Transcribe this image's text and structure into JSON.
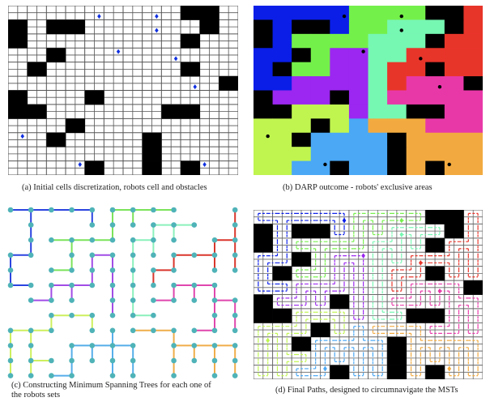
{
  "figure": {
    "grid": {
      "coarse_rows": 12,
      "coarse_cols": 12,
      "fine_rows": 24,
      "fine_cols": 24
    },
    "obstacle_color": "#000000",
    "obstacles": [
      [
        0,
        9
      ],
      [
        0,
        10
      ],
      [
        1,
        0
      ],
      [
        1,
        2
      ],
      [
        1,
        3
      ],
      [
        1,
        10
      ],
      [
        2,
        0
      ],
      [
        2,
        9
      ],
      [
        3,
        2
      ],
      [
        4,
        1
      ],
      [
        4,
        9
      ],
      [
        5,
        11
      ],
      [
        6,
        0
      ],
      [
        6,
        4
      ],
      [
        7,
        0
      ],
      [
        7,
        1
      ],
      [
        7,
        8
      ],
      [
        7,
        9
      ],
      [
        8,
        3
      ],
      [
        9,
        2
      ],
      [
        9,
        7
      ],
      [
        10,
        7
      ],
      [
        11,
        4
      ],
      [
        11,
        7
      ],
      [
        11,
        9
      ]
    ],
    "robots": [
      {
        "id": "blue",
        "color": "#0a1ee8",
        "tree_color": "#2b44e0",
        "cell": [
          0,
          4
        ],
        "fine": [
          1,
          9
        ]
      },
      {
        "id": "green",
        "color": "#74f04a",
        "tree_color": "#7be35a",
        "cell": [
          0,
          7
        ],
        "fine": [
          1,
          15
        ]
      },
      {
        "id": "mint",
        "color": "#76f7b2",
        "tree_color": "#8af0bb",
        "cell": [
          1,
          7
        ],
        "fine": [
          3,
          15
        ]
      },
      {
        "id": "purple",
        "color": "#9b27f0",
        "tree_color": "#a24ce6",
        "cell": [
          3,
          5
        ],
        "fine": [
          6,
          11
        ]
      },
      {
        "id": "red",
        "color": "#e8352a",
        "tree_color": "#d9362c",
        "cell": [
          3,
          8
        ],
        "fine": [
          7,
          17
        ]
      },
      {
        "id": "magenta",
        "color": "#e838a8",
        "tree_color": "#e046ad",
        "cell": [
          5,
          9
        ],
        "fine": [
          11,
          19
        ]
      },
      {
        "id": "yellow",
        "color": "#c0f550",
        "tree_color": "#cdf05e",
        "cell": [
          9,
          0
        ],
        "fine": [
          18,
          1
        ]
      },
      {
        "id": "lightblue",
        "color": "#4aa8f5",
        "tree_color": "#56aeea",
        "cell": [
          11,
          3
        ],
        "fine": [
          22,
          7
        ]
      },
      {
        "id": "orange",
        "color": "#f2aa40",
        "tree_color": "#f0ad4a",
        "cell": [
          11,
          10
        ],
        "fine": [
          22,
          20
        ]
      }
    ],
    "assignment": [
      "BBBBBGGGGKKR",
      "KBKKBGGTTTKR",
      "KBGGGGTTTKRR",
      "BBKGPPTTRRRR",
      "BKGGPPTRRKRR",
      "BBPPPPTRMMMK",
      "KPPPKPTMMMMM",
      "KKYYYPTTKKMM",
      "YYYKYLOOOMMM",
      "YYKLLLLKOOOO",
      "YYYLLLLKOOOO",
      "YYLLKLLKOKOO"
    ],
    "assignment_legend": {
      "B": "blue",
      "G": "green",
      "T": "mint",
      "P": "purple",
      "R": "red",
      "M": "magenta",
      "Y": "yellow",
      "L": "lightblue",
      "O": "orange",
      "K": "obstacle"
    },
    "node_color": "#4fb3b8",
    "mst_edges": {
      "blue": [
        [
          [
            0,
            0
          ],
          [
            0,
            1
          ]
        ],
        [
          [
            0,
            1
          ],
          [
            0,
            2
          ]
        ],
        [
          [
            0,
            2
          ],
          [
            0,
            3
          ]
        ],
        [
          [
            0,
            3
          ],
          [
            0,
            4
          ]
        ],
        [
          [
            0,
            4
          ],
          [
            1,
            4
          ]
        ],
        [
          [
            0,
            1
          ],
          [
            1,
            1
          ]
        ],
        [
          [
            1,
            1
          ],
          [
            2,
            1
          ]
        ],
        [
          [
            2,
            1
          ],
          [
            3,
            1
          ]
        ],
        [
          [
            3,
            1
          ],
          [
            3,
            0
          ]
        ],
        [
          [
            3,
            0
          ],
          [
            4,
            0
          ]
        ],
        [
          [
            4,
            0
          ],
          [
            5,
            0
          ]
        ],
        [
          [
            5,
            0
          ],
          [
            5,
            1
          ]
        ]
      ],
      "green": [
        [
          [
            0,
            5
          ],
          [
            0,
            6
          ]
        ],
        [
          [
            0,
            6
          ],
          [
            0,
            7
          ]
        ],
        [
          [
            0,
            7
          ],
          [
            0,
            8
          ]
        ],
        [
          [
            0,
            6
          ],
          [
            1,
            6
          ]
        ],
        [
          [
            0,
            5
          ],
          [
            1,
            5
          ]
        ],
        [
          [
            1,
            5
          ],
          [
            2,
            5
          ]
        ],
        [
          [
            2,
            5
          ],
          [
            2,
            4
          ]
        ],
        [
          [
            2,
            4
          ],
          [
            2,
            3
          ]
        ],
        [
          [
            2,
            3
          ],
          [
            2,
            2
          ]
        ],
        [
          [
            2,
            3
          ],
          [
            3,
            3
          ]
        ],
        [
          [
            3,
            3
          ],
          [
            4,
            3
          ]
        ],
        [
          [
            4,
            3
          ],
          [
            4,
            2
          ]
        ]
      ],
      "mint": [
        [
          [
            1,
            7
          ],
          [
            1,
            8
          ]
        ],
        [
          [
            1,
            8
          ],
          [
            1,
            9
          ]
        ],
        [
          [
            1,
            8
          ],
          [
            2,
            8
          ]
        ],
        [
          [
            1,
            7
          ],
          [
            2,
            7
          ]
        ],
        [
          [
            2,
            7
          ],
          [
            2,
            6
          ]
        ],
        [
          [
            2,
            7
          ],
          [
            3,
            7
          ]
        ],
        [
          [
            2,
            6
          ],
          [
            3,
            6
          ]
        ],
        [
          [
            3,
            6
          ],
          [
            4,
            6
          ]
        ],
        [
          [
            4,
            6
          ],
          [
            5,
            6
          ]
        ],
        [
          [
            5,
            6
          ],
          [
            6,
            6
          ]
        ],
        [
          [
            6,
            6
          ],
          [
            7,
            6
          ]
        ],
        [
          [
            7,
            6
          ],
          [
            7,
            7
          ]
        ]
      ],
      "purple": [
        [
          [
            3,
            4
          ],
          [
            3,
            5
          ]
        ],
        [
          [
            3,
            5
          ],
          [
            4,
            5
          ]
        ],
        [
          [
            4,
            5
          ],
          [
            5,
            5
          ]
        ],
        [
          [
            5,
            5
          ],
          [
            6,
            5
          ]
        ],
        [
          [
            6,
            5
          ],
          [
            7,
            5
          ]
        ],
        [
          [
            3,
            4
          ],
          [
            4,
            4
          ]
        ],
        [
          [
            4,
            4
          ],
          [
            5,
            4
          ]
        ],
        [
          [
            5,
            4
          ],
          [
            5,
            3
          ]
        ],
        [
          [
            5,
            3
          ],
          [
            5,
            2
          ]
        ],
        [
          [
            5,
            3
          ],
          [
            6,
            3
          ]
        ],
        [
          [
            5,
            2
          ],
          [
            6,
            2
          ]
        ],
        [
          [
            6,
            2
          ],
          [
            6,
            1
          ]
        ]
      ],
      "red": [
        [
          [
            0,
            11
          ],
          [
            1,
            11
          ]
        ],
        [
          [
            1,
            11
          ],
          [
            2,
            11
          ]
        ],
        [
          [
            2,
            11
          ],
          [
            3,
            11
          ]
        ],
        [
          [
            3,
            11
          ],
          [
            4,
            11
          ]
        ],
        [
          [
            2,
            11
          ],
          [
            2,
            10
          ]
        ],
        [
          [
            2,
            10
          ],
          [
            3,
            10
          ]
        ],
        [
          [
            3,
            10
          ],
          [
            4,
            10
          ]
        ],
        [
          [
            3,
            10
          ],
          [
            3,
            9
          ]
        ],
        [
          [
            3,
            9
          ],
          [
            3,
            8
          ]
        ],
        [
          [
            3,
            8
          ],
          [
            4,
            8
          ]
        ],
        [
          [
            4,
            8
          ],
          [
            4,
            7
          ]
        ],
        [
          [
            4,
            7
          ],
          [
            5,
            7
          ]
        ]
      ],
      "magenta": [
        [
          [
            5,
            8
          ],
          [
            5,
            9
          ]
        ],
        [
          [
            5,
            9
          ],
          [
            5,
            10
          ]
        ],
        [
          [
            5,
            8
          ],
          [
            6,
            8
          ]
        ],
        [
          [
            6,
            8
          ],
          [
            6,
            7
          ]
        ],
        [
          [
            5,
            9
          ],
          [
            6,
            9
          ]
        ],
        [
          [
            5,
            10
          ],
          [
            6,
            10
          ]
        ],
        [
          [
            6,
            10
          ],
          [
            7,
            10
          ]
        ],
        [
          [
            7,
            10
          ],
          [
            8,
            10
          ]
        ],
        [
          [
            8,
            10
          ],
          [
            8,
            9
          ]
        ],
        [
          [
            6,
            10
          ],
          [
            6,
            11
          ]
        ],
        [
          [
            6,
            11
          ],
          [
            7,
            11
          ]
        ],
        [
          [
            7,
            11
          ],
          [
            8,
            11
          ]
        ]
      ],
      "yellow": [
        [
          [
            7,
            2
          ],
          [
            7,
            3
          ]
        ],
        [
          [
            7,
            3
          ],
          [
            7,
            4
          ]
        ],
        [
          [
            7,
            4
          ],
          [
            8,
            4
          ]
        ],
        [
          [
            7,
            2
          ],
          [
            8,
            2
          ]
        ],
        [
          [
            8,
            2
          ],
          [
            8,
            1
          ]
        ],
        [
          [
            8,
            1
          ],
          [
            8,
            0
          ]
        ],
        [
          [
            8,
            0
          ],
          [
            9,
            0
          ]
        ],
        [
          [
            9,
            0
          ],
          [
            10,
            0
          ]
        ],
        [
          [
            10,
            0
          ],
          [
            11,
            0
          ]
        ],
        [
          [
            8,
            1
          ],
          [
            9,
            1
          ]
        ],
        [
          [
            9,
            1
          ],
          [
            10,
            1
          ]
        ],
        [
          [
            10,
            1
          ],
          [
            11,
            1
          ]
        ],
        [
          [
            10,
            1
          ],
          [
            10,
            2
          ]
        ]
      ],
      "lightblue": [
        [
          [
            9,
            3
          ],
          [
            9,
            4
          ]
        ],
        [
          [
            9,
            4
          ],
          [
            9,
            5
          ]
        ],
        [
          [
            9,
            5
          ],
          [
            9,
            6
          ]
        ],
        [
          [
            9,
            4
          ],
          [
            10,
            4
          ]
        ],
        [
          [
            9,
            5
          ],
          [
            8,
            5
          ]
        ],
        [
          [
            9,
            5
          ],
          [
            10,
            5
          ]
        ],
        [
          [
            10,
            5
          ],
          [
            11,
            5
          ]
        ],
        [
          [
            9,
            6
          ],
          [
            10,
            6
          ]
        ],
        [
          [
            10,
            6
          ],
          [
            11,
            6
          ]
        ],
        [
          [
            9,
            3
          ],
          [
            10,
            3
          ]
        ],
        [
          [
            10,
            3
          ],
          [
            11,
            3
          ]
        ],
        [
          [
            11,
            3
          ],
          [
            11,
            2
          ]
        ]
      ],
      "orange": [
        [
          [
            8,
            6
          ],
          [
            8,
            7
          ]
        ],
        [
          [
            8,
            7
          ],
          [
            8,
            8
          ]
        ],
        [
          [
            8,
            8
          ],
          [
            9,
            8
          ]
        ],
        [
          [
            9,
            8
          ],
          [
            9,
            9
          ]
        ],
        [
          [
            9,
            9
          ],
          [
            9,
            10
          ]
        ],
        [
          [
            9,
            10
          ],
          [
            9,
            11
          ]
        ],
        [
          [
            9,
            8
          ],
          [
            10,
            8
          ]
        ],
        [
          [
            10,
            8
          ],
          [
            11,
            8
          ]
        ],
        [
          [
            9,
            9
          ],
          [
            10,
            9
          ]
        ],
        [
          [
            9,
            10
          ],
          [
            10,
            10
          ]
        ],
        [
          [
            10,
            10
          ],
          [
            11,
            10
          ]
        ],
        [
          [
            9,
            11
          ],
          [
            10,
            11
          ]
        ],
        [
          [
            10,
            11
          ],
          [
            11,
            11
          ]
        ]
      ]
    }
  },
  "captions": {
    "a": "(a) Initial cells discretization, robots cell and obstacles",
    "b": "(b) DARP outcome - robots' exclusive areas",
    "c_line1": "(c) Constructing Minimum Spanning Trees for each one of",
    "c_line2": "the robots sets",
    "d": "(d) Final Paths, designed to circumnavigate the MSTs"
  }
}
